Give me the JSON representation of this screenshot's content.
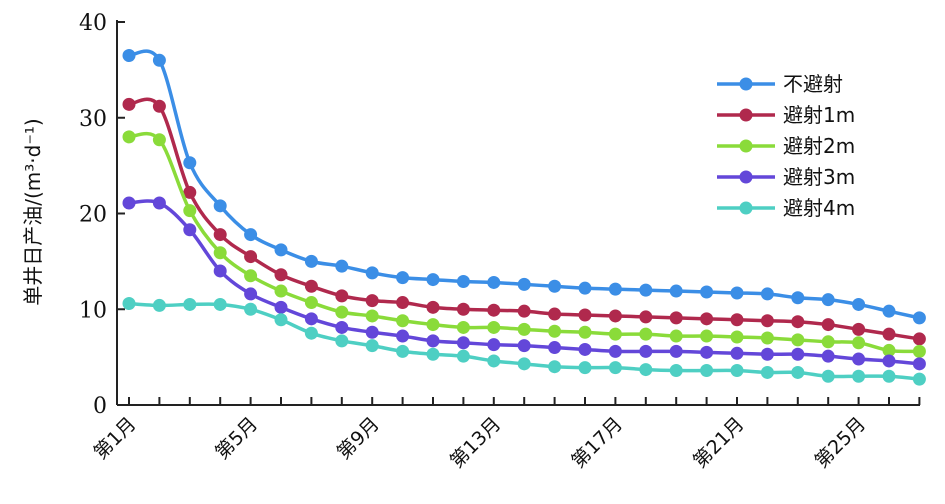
{
  "chart_data": {
    "type": "line",
    "title": "",
    "xlabel": "",
    "ylabel": "单井日产油/(m³·d⁻¹)",
    "ylim": [
      0,
      40
    ],
    "yticks": [
      "0",
      "10",
      "20",
      "30",
      "40"
    ],
    "x": [
      "第1月",
      "第2月",
      "第3月",
      "第4月",
      "第5月",
      "第6月",
      "第7月",
      "第8月",
      "第9月",
      "第10月",
      "第11月",
      "第12月",
      "第13月",
      "第14月",
      "第15月",
      "第16月",
      "第17月",
      "第18月",
      "第19月",
      "第20月",
      "第21月",
      "第22月",
      "第23月",
      "第24月",
      "第25月",
      "第26月",
      "第27月"
    ],
    "xticks": [
      "第1月",
      "第5月",
      "第9月",
      "第13月",
      "第17月",
      "第21月",
      "第25月"
    ],
    "grid": false,
    "legend_position": "top-right",
    "series": [
      {
        "name": "不避射",
        "color": "#3b8ee6",
        "values": [
          36.5,
          36.0,
          25.3,
          20.8,
          17.8,
          16.2,
          15.0,
          14.5,
          13.8,
          13.3,
          13.1,
          12.9,
          12.8,
          12.6,
          12.4,
          12.2,
          12.1,
          12.0,
          11.9,
          11.8,
          11.7,
          11.6,
          11.2,
          11.0,
          10.5,
          9.8,
          9.1
        ]
      },
      {
        "name": "避射1m",
        "color": "#b0294d",
        "values": [
          31.4,
          31.2,
          22.2,
          17.8,
          15.5,
          13.6,
          12.4,
          11.4,
          10.9,
          10.7,
          10.2,
          10.0,
          9.9,
          9.8,
          9.5,
          9.4,
          9.3,
          9.2,
          9.1,
          9.0,
          8.9,
          8.8,
          8.7,
          8.4,
          7.9,
          7.4,
          6.9
        ]
      },
      {
        "name": "避射2m",
        "color": "#8adb3a",
        "values": [
          28.0,
          27.7,
          20.3,
          15.9,
          13.5,
          11.9,
          10.7,
          9.7,
          9.3,
          8.8,
          8.4,
          8.1,
          8.1,
          7.9,
          7.7,
          7.6,
          7.4,
          7.4,
          7.2,
          7.2,
          7.1,
          7.0,
          6.8,
          6.6,
          6.5,
          5.7,
          5.6
        ]
      },
      {
        "name": "避射3m",
        "color": "#6347d9",
        "values": [
          21.1,
          21.1,
          18.3,
          14.0,
          11.6,
          10.2,
          9.0,
          8.1,
          7.6,
          7.2,
          6.7,
          6.5,
          6.3,
          6.2,
          6.0,
          5.8,
          5.6,
          5.6,
          5.6,
          5.5,
          5.4,
          5.3,
          5.3,
          5.1,
          4.8,
          4.6,
          4.3
        ]
      },
      {
        "name": "避射4m",
        "color": "#4ecfc3",
        "values": [
          10.6,
          10.4,
          10.5,
          10.5,
          10.0,
          8.9,
          7.5,
          6.7,
          6.2,
          5.6,
          5.3,
          5.1,
          4.6,
          4.3,
          4.0,
          3.9,
          3.9,
          3.7,
          3.6,
          3.6,
          3.6,
          3.4,
          3.4,
          3.0,
          3.0,
          3.0,
          2.7
        ]
      }
    ]
  }
}
